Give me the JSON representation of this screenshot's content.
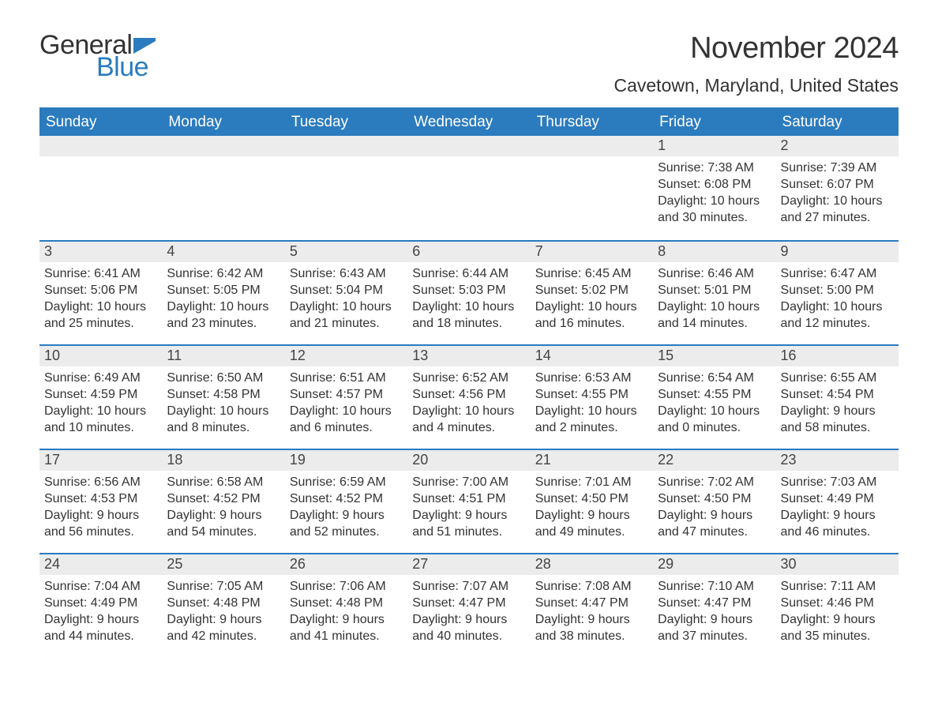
{
  "logo": {
    "word1": "General",
    "word2": "Blue",
    "flag_color": "#2b7bbf",
    "word2_color": "#2b7bbf",
    "word1_color": "#333333"
  },
  "title": "November 2024",
  "location": "Cavetown, Maryland, United States",
  "colors": {
    "header_bg": "#2b7bbf",
    "header_text": "#ffffff",
    "daynum_bg": "#ececec",
    "rule": "#2b7bbf",
    "body_text": "#333333",
    "page_bg": "#ffffff"
  },
  "typography": {
    "title_fontsize": 38,
    "location_fontsize": 23,
    "header_fontsize": 19,
    "daynum_fontsize": 18,
    "body_fontsize": 16
  },
  "weekday_headers": [
    "Sunday",
    "Monday",
    "Tuesday",
    "Wednesday",
    "Thursday",
    "Friday",
    "Saturday"
  ],
  "weeks": [
    [
      null,
      null,
      null,
      null,
      null,
      {
        "n": "1",
        "sunrise": "Sunrise: 7:38 AM",
        "sunset": "Sunset: 6:08 PM",
        "day1": "Daylight: 10 hours",
        "day2": "and 30 minutes."
      },
      {
        "n": "2",
        "sunrise": "Sunrise: 7:39 AM",
        "sunset": "Sunset: 6:07 PM",
        "day1": "Daylight: 10 hours",
        "day2": "and 27 minutes."
      }
    ],
    [
      {
        "n": "3",
        "sunrise": "Sunrise: 6:41 AM",
        "sunset": "Sunset: 5:06 PM",
        "day1": "Daylight: 10 hours",
        "day2": "and 25 minutes."
      },
      {
        "n": "4",
        "sunrise": "Sunrise: 6:42 AM",
        "sunset": "Sunset: 5:05 PM",
        "day1": "Daylight: 10 hours",
        "day2": "and 23 minutes."
      },
      {
        "n": "5",
        "sunrise": "Sunrise: 6:43 AM",
        "sunset": "Sunset: 5:04 PM",
        "day1": "Daylight: 10 hours",
        "day2": "and 21 minutes."
      },
      {
        "n": "6",
        "sunrise": "Sunrise: 6:44 AM",
        "sunset": "Sunset: 5:03 PM",
        "day1": "Daylight: 10 hours",
        "day2": "and 18 minutes."
      },
      {
        "n": "7",
        "sunrise": "Sunrise: 6:45 AM",
        "sunset": "Sunset: 5:02 PM",
        "day1": "Daylight: 10 hours",
        "day2": "and 16 minutes."
      },
      {
        "n": "8",
        "sunrise": "Sunrise: 6:46 AM",
        "sunset": "Sunset: 5:01 PM",
        "day1": "Daylight: 10 hours",
        "day2": "and 14 minutes."
      },
      {
        "n": "9",
        "sunrise": "Sunrise: 6:47 AM",
        "sunset": "Sunset: 5:00 PM",
        "day1": "Daylight: 10 hours",
        "day2": "and 12 minutes."
      }
    ],
    [
      {
        "n": "10",
        "sunrise": "Sunrise: 6:49 AM",
        "sunset": "Sunset: 4:59 PM",
        "day1": "Daylight: 10 hours",
        "day2": "and 10 minutes."
      },
      {
        "n": "11",
        "sunrise": "Sunrise: 6:50 AM",
        "sunset": "Sunset: 4:58 PM",
        "day1": "Daylight: 10 hours",
        "day2": "and 8 minutes."
      },
      {
        "n": "12",
        "sunrise": "Sunrise: 6:51 AM",
        "sunset": "Sunset: 4:57 PM",
        "day1": "Daylight: 10 hours",
        "day2": "and 6 minutes."
      },
      {
        "n": "13",
        "sunrise": "Sunrise: 6:52 AM",
        "sunset": "Sunset: 4:56 PM",
        "day1": "Daylight: 10 hours",
        "day2": "and 4 minutes."
      },
      {
        "n": "14",
        "sunrise": "Sunrise: 6:53 AM",
        "sunset": "Sunset: 4:55 PM",
        "day1": "Daylight: 10 hours",
        "day2": "and 2 minutes."
      },
      {
        "n": "15",
        "sunrise": "Sunrise: 6:54 AM",
        "sunset": "Sunset: 4:55 PM",
        "day1": "Daylight: 10 hours",
        "day2": "and 0 minutes."
      },
      {
        "n": "16",
        "sunrise": "Sunrise: 6:55 AM",
        "sunset": "Sunset: 4:54 PM",
        "day1": "Daylight: 9 hours",
        "day2": "and 58 minutes."
      }
    ],
    [
      {
        "n": "17",
        "sunrise": "Sunrise: 6:56 AM",
        "sunset": "Sunset: 4:53 PM",
        "day1": "Daylight: 9 hours",
        "day2": "and 56 minutes."
      },
      {
        "n": "18",
        "sunrise": "Sunrise: 6:58 AM",
        "sunset": "Sunset: 4:52 PM",
        "day1": "Daylight: 9 hours",
        "day2": "and 54 minutes."
      },
      {
        "n": "19",
        "sunrise": "Sunrise: 6:59 AM",
        "sunset": "Sunset: 4:52 PM",
        "day1": "Daylight: 9 hours",
        "day2": "and 52 minutes."
      },
      {
        "n": "20",
        "sunrise": "Sunrise: 7:00 AM",
        "sunset": "Sunset: 4:51 PM",
        "day1": "Daylight: 9 hours",
        "day2": "and 51 minutes."
      },
      {
        "n": "21",
        "sunrise": "Sunrise: 7:01 AM",
        "sunset": "Sunset: 4:50 PM",
        "day1": "Daylight: 9 hours",
        "day2": "and 49 minutes."
      },
      {
        "n": "22",
        "sunrise": "Sunrise: 7:02 AM",
        "sunset": "Sunset: 4:50 PM",
        "day1": "Daylight: 9 hours",
        "day2": "and 47 minutes."
      },
      {
        "n": "23",
        "sunrise": "Sunrise: 7:03 AM",
        "sunset": "Sunset: 4:49 PM",
        "day1": "Daylight: 9 hours",
        "day2": "and 46 minutes."
      }
    ],
    [
      {
        "n": "24",
        "sunrise": "Sunrise: 7:04 AM",
        "sunset": "Sunset: 4:49 PM",
        "day1": "Daylight: 9 hours",
        "day2": "and 44 minutes."
      },
      {
        "n": "25",
        "sunrise": "Sunrise: 7:05 AM",
        "sunset": "Sunset: 4:48 PM",
        "day1": "Daylight: 9 hours",
        "day2": "and 42 minutes."
      },
      {
        "n": "26",
        "sunrise": "Sunrise: 7:06 AM",
        "sunset": "Sunset: 4:48 PM",
        "day1": "Daylight: 9 hours",
        "day2": "and 41 minutes."
      },
      {
        "n": "27",
        "sunrise": "Sunrise: 7:07 AM",
        "sunset": "Sunset: 4:47 PM",
        "day1": "Daylight: 9 hours",
        "day2": "and 40 minutes."
      },
      {
        "n": "28",
        "sunrise": "Sunrise: 7:08 AM",
        "sunset": "Sunset: 4:47 PM",
        "day1": "Daylight: 9 hours",
        "day2": "and 38 minutes."
      },
      {
        "n": "29",
        "sunrise": "Sunrise: 7:10 AM",
        "sunset": "Sunset: 4:47 PM",
        "day1": "Daylight: 9 hours",
        "day2": "and 37 minutes."
      },
      {
        "n": "30",
        "sunrise": "Sunrise: 7:11 AM",
        "sunset": "Sunset: 4:46 PM",
        "day1": "Daylight: 9 hours",
        "day2": "and 35 minutes."
      }
    ]
  ]
}
